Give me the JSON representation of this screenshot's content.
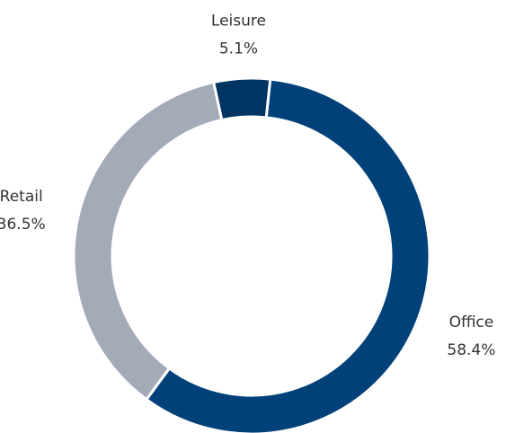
{
  "chart_data": {
    "type": "donut",
    "categories": [
      "Office",
      "Retail",
      "Leisure"
    ],
    "values": [
      58.4,
      36.5,
      5.1
    ],
    "value_labels": [
      "58.4%",
      "36.5%",
      "5.1%"
    ],
    "colors": [
      "#00417a",
      "#a3aab8",
      "#003462"
    ]
  }
}
